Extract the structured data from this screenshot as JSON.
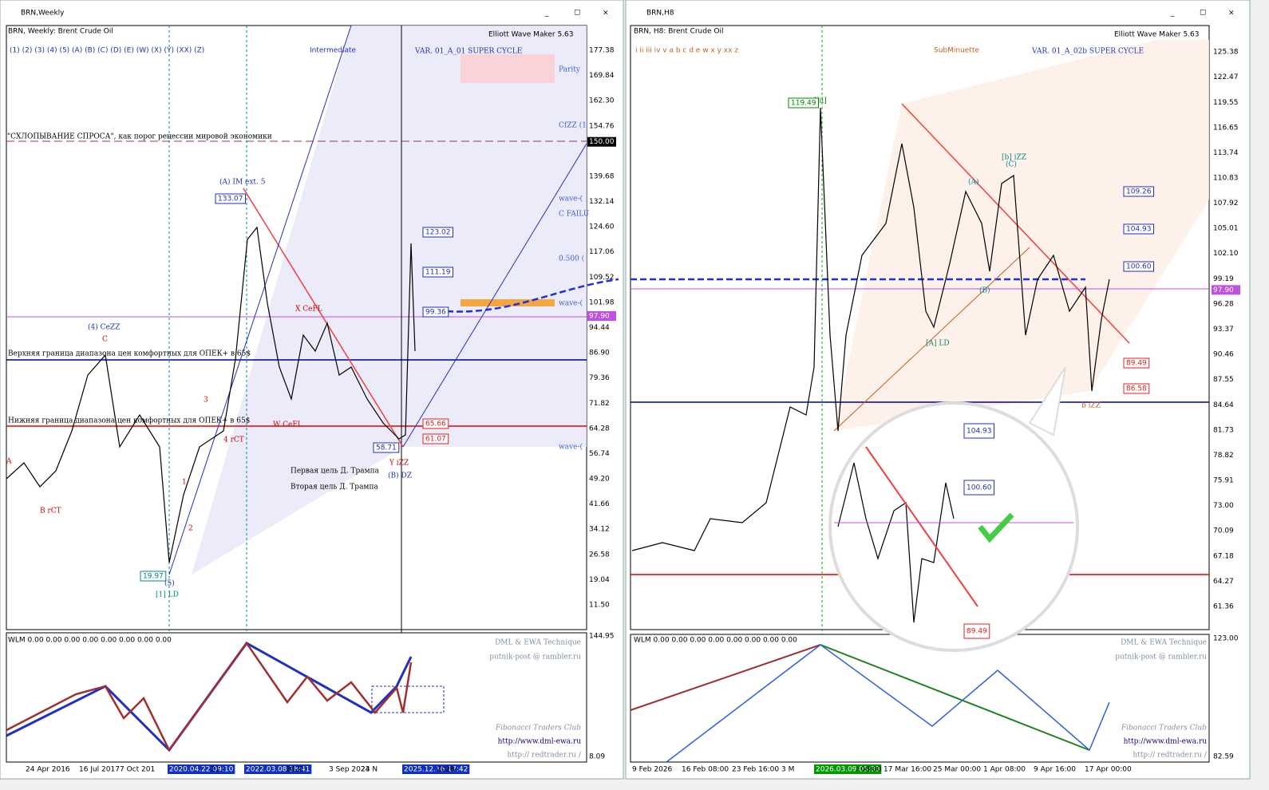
{
  "windows": [
    {
      "title": "BRN,Weekly",
      "symbol": "BRN, Weekly:  Brent Crude Oil",
      "tool": "Elliott Wave Maker 5.63",
      "degrees": "(1)  (2)  (3)  (4)  (5)  (A)  (B)  (C)  (D)  (E)  (W)  (X)  (Y)  (XX)  (Z)",
      "degree": "Intermediate",
      "variant": "VAR. 01_A_01 SUPER CYCLE",
      "price_labels": [
        "177.38",
        "169.84",
        "162.30",
        "154.76",
        "150.00",
        "139.68",
        "132.14",
        "124.60",
        "117.06",
        "109.52",
        "101.98",
        "97.90",
        "94.44",
        "86.90",
        "79.36",
        "71.82",
        "64.28",
        "56.74",
        "49.20",
        "41.66",
        "34.12",
        "26.58",
        "19.04",
        "11.50"
      ],
      "time_labels": [
        "24 Apr 2016",
        "16 Jul 2017",
        "7 Oct 201",
        "2020.04.22 09:10",
        "21",
        "2022.03.08 18:41",
        "2022",
        "3 Sep 2023",
        "24 N",
        "2025.12.16 17:42",
        "2026"
      ],
      "annotations": [
        "(4) CeZZ",
        "C",
        "(A) IM ext. 5",
        "X CeFL",
        "W CeFL",
        "Y iZZ",
        "(B) DZ",
        "(5)",
        "[1] LD",
        "B rCT",
        "4 rCT",
        "3",
        "1",
        "2",
        "A",
        "\"СХЛОПЫВАНИЕ СПРОСА\", как порог рецессии мировой экономики",
        "Верхняя граница диапазона цен комфортных для ОПЕК+ в 65$",
        "Нижняя граница диапазона цен комфортных для ОПЕК+ в 65$",
        "Первая цель Д. Трампа",
        "Вторая цель Д. Трампа",
        "Parity",
        "CfZZ (1",
        "wave-(",
        "C FAILU",
        "0.500 (",
        "wave-(",
        "wave-("
      ],
      "price_boxes": [
        "133.07",
        "123.02",
        "111.19",
        "99.36",
        "65.66",
        "61.07",
        "58.71",
        "19.97"
      ],
      "indicator": {
        "label": "WLM 0.00 0.00 0.00 0.00 0.00 0.00 0.00 0.00",
        "price_labels": [
          "144.95",
          "8.09"
        ],
        "credits": [
          "DML & EWA Technique",
          "putnik-post @ rambler.ru",
          "Fibonacci   Traders   Club",
          "http://www.dml-ewa.ru",
          "http://  redtrader.ru  /"
        ]
      }
    },
    {
      "title": "BRN,H8",
      "symbol": "BRN, H8:  Brent Crude Oil",
      "tool": "Elliott Wave Maker 5.63",
      "degrees": "i   ii   iii   iv   v   a   b   c   d   e   w   x   y   xx   z",
      "degree": "SubMinuette",
      "variant": "VAR. 01_A_02b SUPER CYCLE",
      "price_labels": [
        "125.38",
        "122.47",
        "119.55",
        "116.65",
        "113.74",
        "110.83",
        "107.92",
        "105.01",
        "102.10",
        "99.19",
        "97.90",
        "96.28",
        "93.37",
        "90.46",
        "87.55",
        "84.64",
        "81.73",
        "78.82",
        "75.91",
        "73.00",
        "70.09",
        "67.18",
        "64.27",
        "61.36"
      ],
      "time_labels": [
        "9 Feb 2026",
        "16 Feb 08:00",
        "23 Feb 16:00",
        "3 M",
        "2026.03.09 05:33",
        "r 08:00",
        "17 Mar 16:00",
        "25 Mar 00:00",
        "1 Apr 08:00",
        "9 Apr 16:00",
        "17 Apr 00:00"
      ],
      "annotations": [
        "[iii]",
        "(A)",
        "(B)",
        "(C)",
        "[A] LD",
        "b iZZ",
        "[b] iZZ"
      ],
      "price_boxes": [
        "119.49",
        "109.26",
        "104.93",
        "100.60",
        "89.49",
        "86.58"
      ],
      "zoom_boxes": [
        "104.93",
        "100.60",
        "89.49"
      ],
      "indicator": {
        "label": "WLM 0.00 0.00 0.00 0.00 0.00 0.00 0.00 0.00",
        "price_labels": [
          "123.00",
          "82.59"
        ],
        "credits": [
          "DML & EWA Technique",
          "putnik-post @ rambler.ru",
          "Fibonacci   Traders   Club",
          "http://www.dml-ewa.ru",
          "http://  redtrader.ru  /"
        ]
      }
    }
  ]
}
